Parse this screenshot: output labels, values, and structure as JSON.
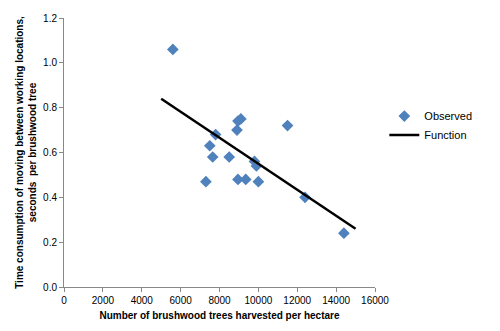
{
  "chart_data": {
    "type": "scatter",
    "x_label": "Number of brushwood trees harvested per hectare",
    "y_label": "Time consumption of moving between working locations, seconds  per brushwood tree",
    "xlim": [
      0,
      16000
    ],
    "xticks": [
      0,
      2000,
      4000,
      6000,
      8000,
      10000,
      12000,
      14000,
      16000
    ],
    "ylim": [
      0,
      1.2
    ],
    "yticks": [
      {
        "value": 0,
        "label": "0.0"
      },
      0.2,
      0.4,
      0.6,
      0.8,
      {
        "value": 1,
        "label": "1.0"
      },
      1.2
    ],
    "grid": false,
    "legend": "right",
    "series": [
      {
        "name": "Observed",
        "type": "scatter",
        "marker": "diamond",
        "color": "#4f81bd",
        "x": [
          5600,
          7300,
          7500,
          7650,
          7800,
          8500,
          8900,
          8950,
          9100,
          8950,
          9350,
          9800,
          9900,
          10000,
          11500,
          12400,
          14400
        ],
        "values": [
          1.06,
          0.47,
          0.63,
          0.58,
          0.68,
          0.58,
          0.7,
          0.74,
          0.75,
          0.48,
          0.48,
          0.56,
          0.54,
          0.47,
          0.72,
          0.4,
          0.24
        ]
      },
      {
        "name": "Function",
        "type": "line",
        "line_style": "solid",
        "color": "#000000",
        "x": [
          5000,
          15000
        ],
        "values": [
          0.84,
          0.26
        ]
      }
    ]
  }
}
